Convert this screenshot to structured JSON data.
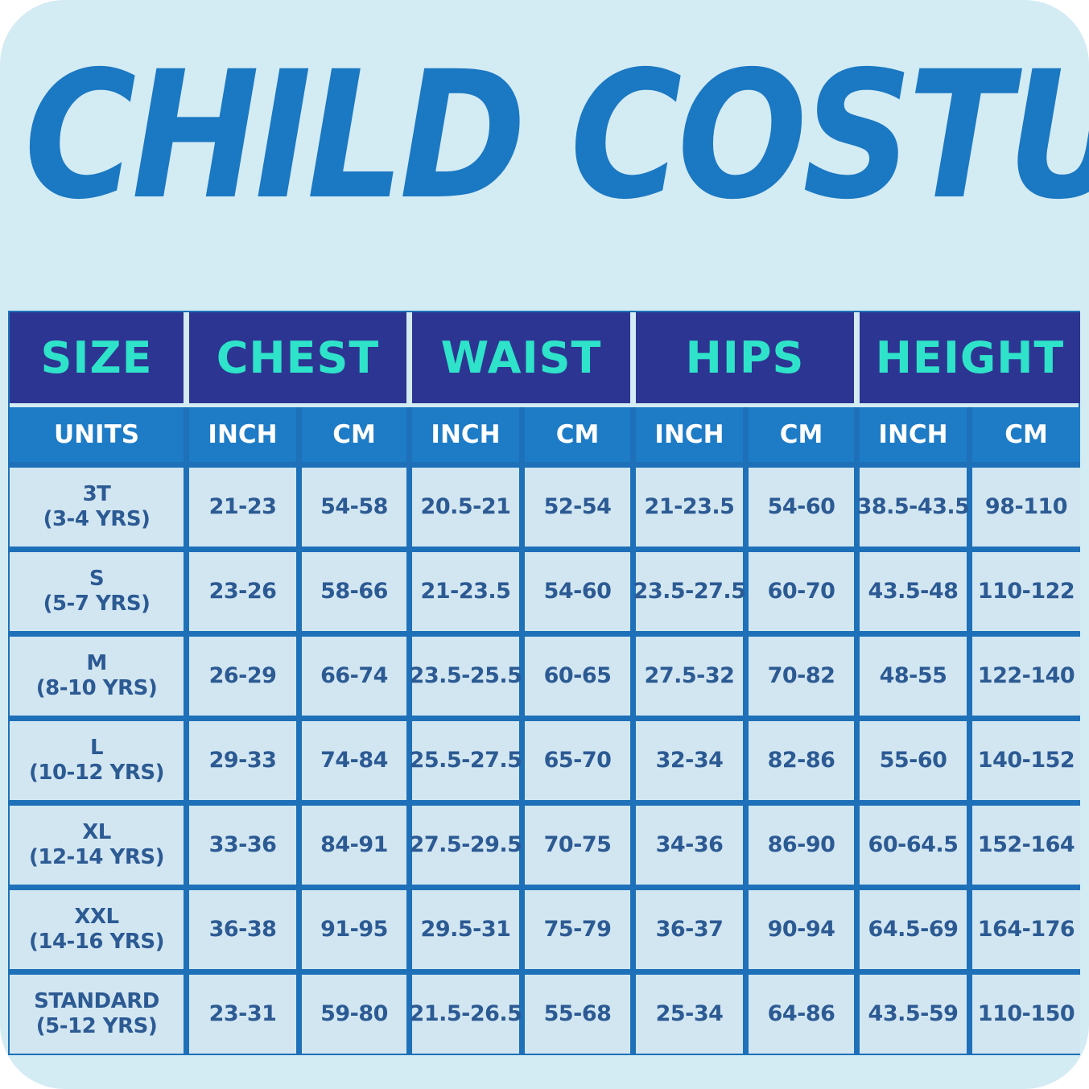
{
  "title": "CHILD COSTUME",
  "colors": {
    "background": "#d3ebf3",
    "title": "#1b78c2",
    "header_bg": "#2d3592",
    "header_text": "#2ee3c9",
    "units_bg": "#1e7cc7",
    "cell_bg": "#d2e6f1",
    "cell_text": "#2c5a93"
  },
  "headers": [
    "SIZE",
    "CHEST",
    "WAIST",
    "HIPS",
    "HEIGHT"
  ],
  "units": [
    "UNITS",
    "INCH",
    "CM",
    "INCH",
    "CM",
    "INCH",
    "CM",
    "INCH",
    "CM"
  ],
  "rows": [
    {
      "size": "3T",
      "age": "(3-4 YRS)",
      "values": [
        "21-23",
        "54-58",
        "20.5-21",
        "52-54",
        "21-23.5",
        "54-60",
        "38.5-43.5",
        "98-110"
      ]
    },
    {
      "size": "S",
      "age": "(5-7 YRS)",
      "values": [
        "23-26",
        "58-66",
        "21-23.5",
        "54-60",
        "23.5-27.5",
        "60-70",
        "43.5-48",
        "110-122"
      ]
    },
    {
      "size": "M",
      "age": "(8-10 YRS)",
      "values": [
        "26-29",
        "66-74",
        "23.5-25.5",
        "60-65",
        "27.5-32",
        "70-82",
        "48-55",
        "122-140"
      ]
    },
    {
      "size": "L",
      "age": "(10-12 YRS)",
      "values": [
        "29-33",
        "74-84",
        "25.5-27.5",
        "65-70",
        "32-34",
        "82-86",
        "55-60",
        "140-152"
      ]
    },
    {
      "size": "XL",
      "age": "(12-14 YRS)",
      "values": [
        "33-36",
        "84-91",
        "27.5-29.5",
        "70-75",
        "34-36",
        "86-90",
        "60-64.5",
        "152-164"
      ]
    },
    {
      "size": "XXL",
      "age": "(14-16 YRS)",
      "values": [
        "36-38",
        "91-95",
        "29.5-31",
        "75-79",
        "36-37",
        "90-94",
        "64.5-69",
        "164-176"
      ]
    },
    {
      "size": "STANDARD",
      "age": "(5-12 YRS)",
      "values": [
        "23-31",
        "59-80",
        "21.5-26.5",
        "55-68",
        "25-34",
        "64-86",
        "43.5-59",
        "110-150"
      ]
    }
  ]
}
